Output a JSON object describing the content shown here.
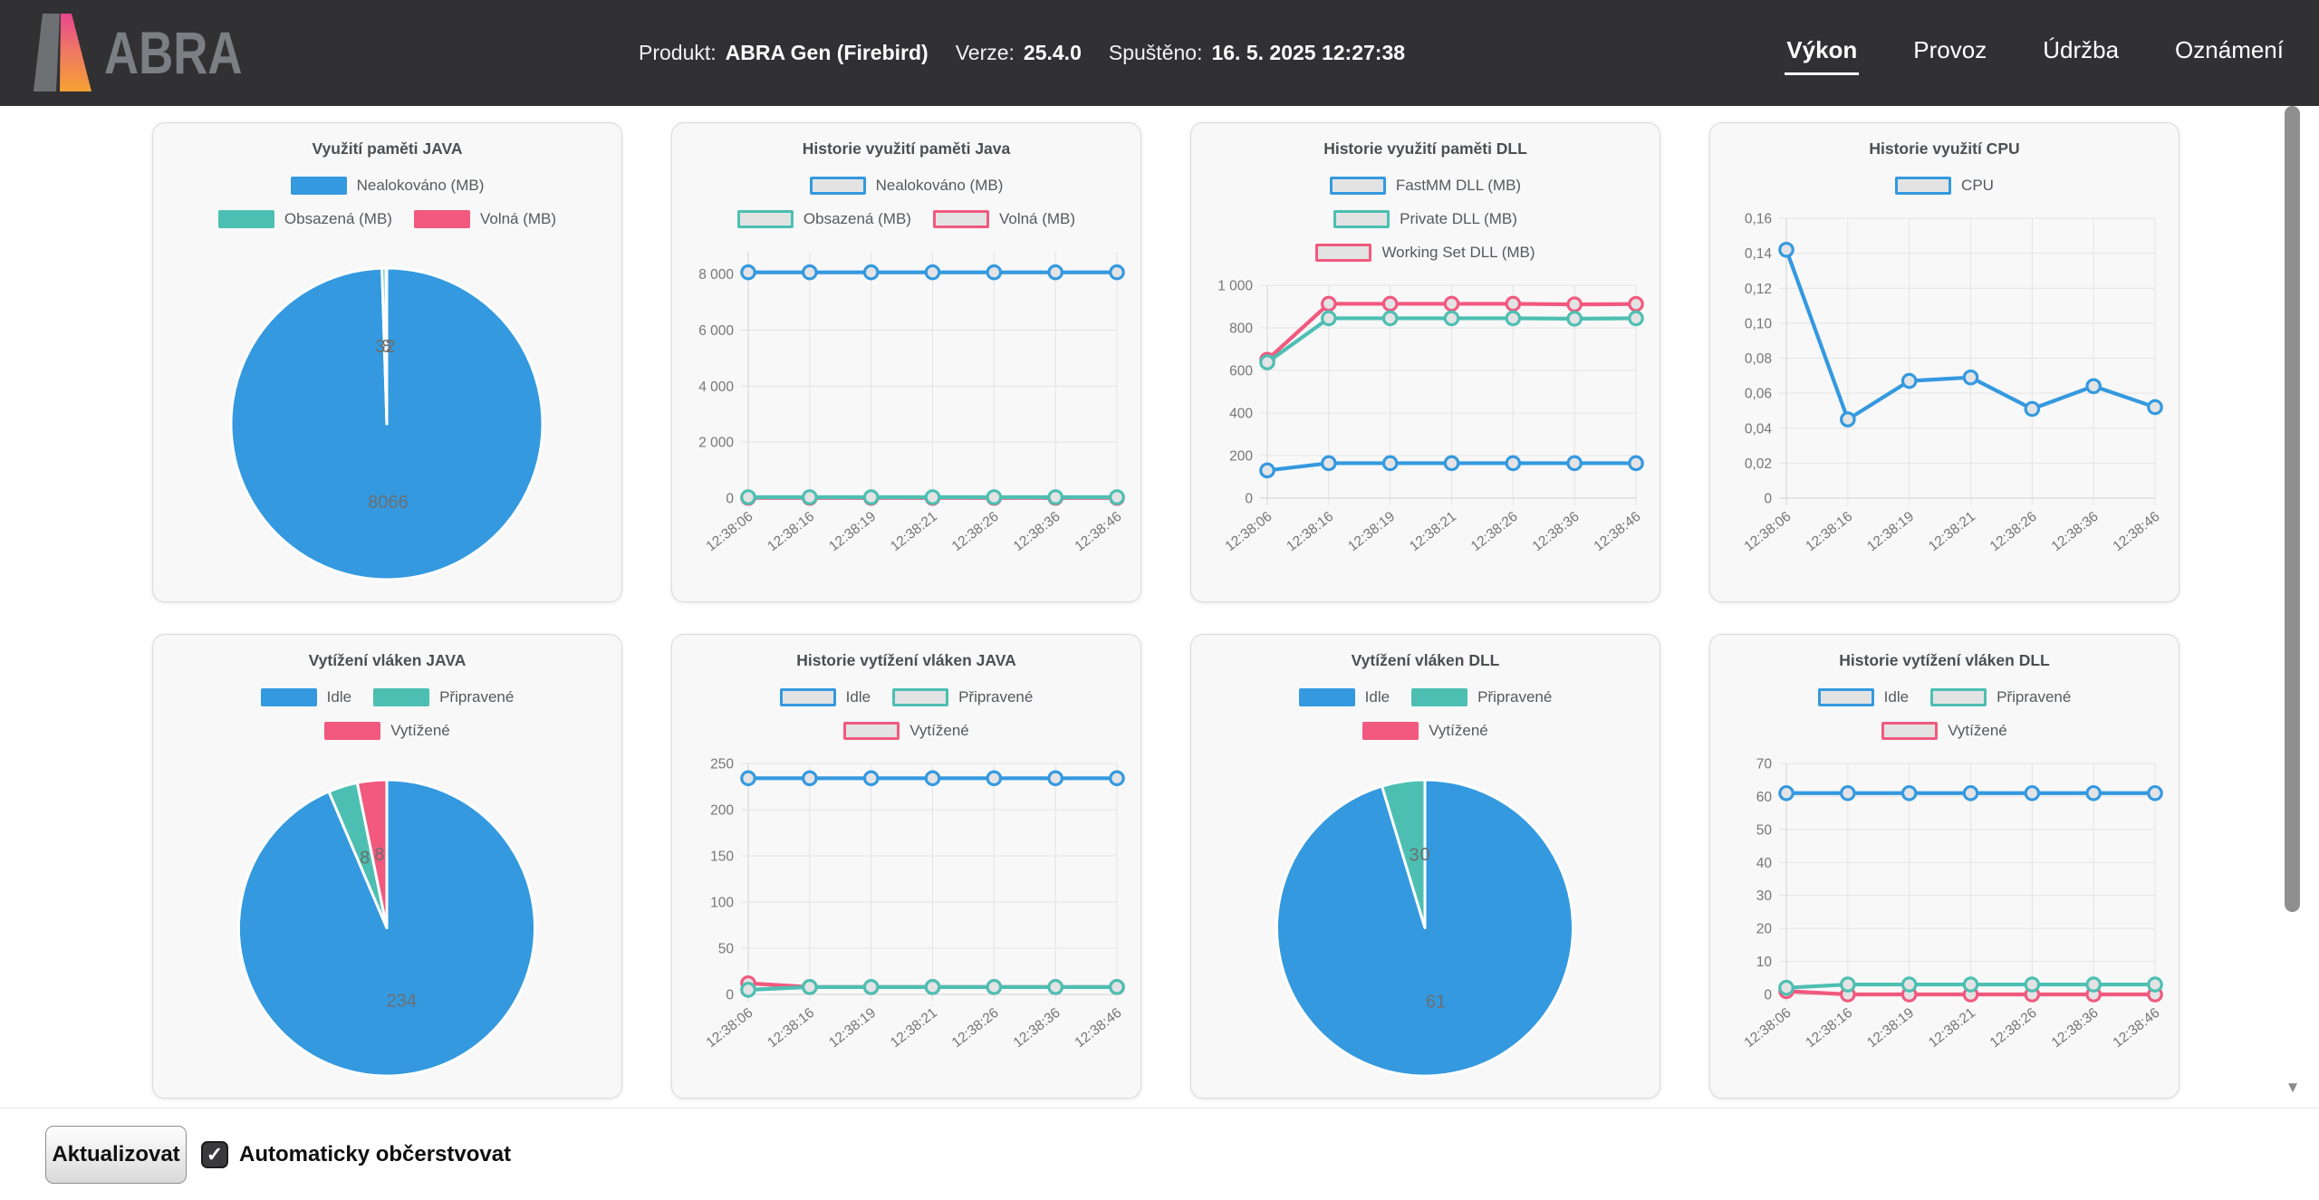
{
  "header": {
    "logo_text": "ABRA",
    "product": {
      "label": "Produkt:",
      "value": "ABRA Gen (Firebird)"
    },
    "version": {
      "label": "Verze:",
      "value": "25.4.0"
    },
    "started": {
      "label": "Spuštěno:",
      "value": "16. 5. 2025 12:27:38"
    },
    "tabs": [
      {
        "label": "Výkon",
        "active": true
      },
      {
        "label": "Provoz",
        "active": false
      },
      {
        "label": "Údržba",
        "active": false
      },
      {
        "label": "Oznámení",
        "active": false
      }
    ]
  },
  "footer": {
    "refresh_button_label": "Aktualizovat",
    "auto_refresh_label": "Automaticky občerstvovat",
    "auto_refresh_checked": true
  },
  "icons": {
    "checkmark": "✓",
    "scroll_down_arrow": "▼"
  },
  "colors": {
    "blue": "#3499DF",
    "teal": "#4DBFB2",
    "pink": "#F1597E",
    "legend_fill": "#E3E3E3",
    "header_bg": "#313133",
    "card_bg": "#F8F8F9",
    "grid": "#E3E3E3",
    "axis": "#D2D2D2",
    "tick_text": "#767676",
    "title_text": "#4B4F52",
    "pie_label_text": "#6B6F71"
  },
  "chart_data": [
    {
      "type": "pie",
      "title": "Využití paměti JAVA",
      "legend_style": "solid",
      "legend_rows": [
        [
          "Nealokováno (MB)"
        ],
        [
          "Obsazená (MB)",
          "Volná (MB)"
        ]
      ],
      "slices": [
        {
          "label": "Nealokováno (MB)",
          "value": 8066,
          "color": "blue"
        },
        {
          "label": "Obsazená (MB)",
          "value": 32,
          "color": "teal"
        },
        {
          "label": "Volná (MB)",
          "value": 8,
          "color": "pink"
        }
      ]
    },
    {
      "type": "line",
      "title": "Historie využití paměti Java",
      "legend_style": "outline",
      "legend_rows": [
        [
          "Nealokováno (MB)"
        ],
        [
          "Obsazená (MB)",
          "Volná (MB)"
        ]
      ],
      "x": [
        "12:38:06",
        "12:38:16",
        "12:38:19",
        "12:38:21",
        "12:38:26",
        "12:38:36",
        "12:38:46"
      ],
      "ymax": 8800,
      "y_ticks": [
        {
          "v": 0,
          "label": "0"
        },
        {
          "v": 2000,
          "label": "2 000"
        },
        {
          "v": 4000,
          "label": "4 000"
        },
        {
          "v": 6000,
          "label": "6 000"
        },
        {
          "v": 8000,
          "label": "8 000"
        }
      ],
      "series": [
        {
          "name": "Nealokováno (MB)",
          "color": "blue",
          "values": [
            8066,
            8066,
            8066,
            8066,
            8066,
            8066,
            8066
          ]
        },
        {
          "name": "Obsazená (MB)",
          "color": "teal",
          "values": [
            32,
            32,
            32,
            32,
            32,
            32,
            32
          ]
        },
        {
          "name": "Volná (MB)",
          "color": "pink",
          "values": [
            8,
            8,
            8,
            8,
            8,
            8,
            8
          ]
        }
      ]
    },
    {
      "type": "line",
      "title": "Historie využití paměti DLL",
      "legend_style": "outline",
      "legend_rows": [
        [
          "FastMM DLL (MB)"
        ],
        [
          "Private DLL (MB)"
        ],
        [
          "Working Set DLL (MB)"
        ]
      ],
      "x": [
        "12:38:06",
        "12:38:16",
        "12:38:19",
        "12:38:21",
        "12:38:26",
        "12:38:36",
        "12:38:46"
      ],
      "ymax": 1000,
      "y_ticks": [
        {
          "v": 0,
          "label": "0"
        },
        {
          "v": 200,
          "label": "200"
        },
        {
          "v": 400,
          "label": "400"
        },
        {
          "v": 600,
          "label": "600"
        },
        {
          "v": 800,
          "label": "800"
        },
        {
          "v": 1000,
          "label": "1 000"
        }
      ],
      "series": [
        {
          "name": "FastMM DLL (MB)",
          "color": "blue",
          "values": [
            130,
            164,
            164,
            164,
            164,
            164,
            164
          ]
        },
        {
          "name": "Private DLL (MB)",
          "color": "teal",
          "values": [
            638,
            845,
            845,
            845,
            845,
            843,
            845
          ]
        },
        {
          "name": "Working Set DLL (MB)",
          "color": "pink",
          "values": [
            650,
            913,
            913,
            913,
            913,
            910,
            912
          ]
        }
      ]
    },
    {
      "type": "line",
      "title": "Historie využití CPU",
      "legend_style": "outline",
      "legend_rows": [
        [
          "CPU"
        ]
      ],
      "x": [
        "12:38:06",
        "12:38:16",
        "12:38:19",
        "12:38:21",
        "12:38:26",
        "12:38:36",
        "12:38:46"
      ],
      "ymax": 0.16,
      "y_ticks": [
        {
          "v": 0,
          "label": "0"
        },
        {
          "v": 0.02,
          "label": "0,02"
        },
        {
          "v": 0.04,
          "label": "0,04"
        },
        {
          "v": 0.06,
          "label": "0,06"
        },
        {
          "v": 0.08,
          "label": "0,08"
        },
        {
          "v": 0.1,
          "label": "0,10"
        },
        {
          "v": 0.12,
          "label": "0,12"
        },
        {
          "v": 0.14,
          "label": "0,14"
        },
        {
          "v": 0.16,
          "label": "0,16"
        }
      ],
      "series": [
        {
          "name": "CPU",
          "color": "blue",
          "values": [
            0.142,
            0.045,
            0.067,
            0.069,
            0.051,
            0.064,
            0.052
          ]
        }
      ]
    },
    {
      "type": "pie",
      "title": "Vytížení vláken JAVA",
      "legend_style": "solid",
      "legend_rows": [
        [
          "Idle",
          "Připravené"
        ],
        [
          "Vytížené"
        ]
      ],
      "slices": [
        {
          "label": "Idle",
          "value": 234,
          "color": "blue"
        },
        {
          "label": "Připravené",
          "value": 8,
          "color": "teal"
        },
        {
          "label": "Vytížené",
          "value": 8,
          "color": "pink"
        }
      ]
    },
    {
      "type": "line",
      "title": "Historie vytížení vláken JAVA",
      "legend_style": "outline",
      "legend_rows": [
        [
          "Idle",
          "Připravené"
        ],
        [
          "Vytížené"
        ]
      ],
      "x": [
        "12:38:06",
        "12:38:16",
        "12:38:19",
        "12:38:21",
        "12:38:26",
        "12:38:36",
        "12:38:46"
      ],
      "ymax": 250,
      "y_ticks": [
        {
          "v": 0,
          "label": "0"
        },
        {
          "v": 50,
          "label": "50"
        },
        {
          "v": 100,
          "label": "100"
        },
        {
          "v": 150,
          "label": "150"
        },
        {
          "v": 200,
          "label": "200"
        },
        {
          "v": 250,
          "label": "250"
        }
      ],
      "series": [
        {
          "name": "Idle",
          "color": "blue",
          "values": [
            234,
            234,
            234,
            234,
            234,
            234,
            234
          ]
        },
        {
          "name": "Připravené",
          "color": "teal",
          "values": [
            5,
            8,
            8,
            8,
            8,
            8,
            8
          ]
        },
        {
          "name": "Vytížené",
          "color": "pink",
          "values": [
            12,
            8,
            8,
            8,
            8,
            8,
            8
          ]
        }
      ]
    },
    {
      "type": "pie",
      "title": "Vytížení vláken DLL",
      "legend_style": "solid",
      "legend_rows": [
        [
          "Idle",
          "Připravené"
        ],
        [
          "Vytížené"
        ]
      ],
      "slices": [
        {
          "label": "Idle",
          "value": 61,
          "color": "blue"
        },
        {
          "label": "Připravené",
          "value": 3,
          "color": "teal"
        },
        {
          "label": "Vytížené",
          "value": 0,
          "color": "pink"
        }
      ]
    },
    {
      "type": "line",
      "title": "Historie vytížení vláken DLL",
      "legend_style": "outline",
      "legend_rows": [
        [
          "Idle",
          "Připravené"
        ],
        [
          "Vytížené"
        ]
      ],
      "x": [
        "12:38:06",
        "12:38:16",
        "12:38:19",
        "12:38:21",
        "12:38:26",
        "12:38:36",
        "12:38:46"
      ],
      "ymax": 70,
      "y_ticks": [
        {
          "v": 0,
          "label": "0"
        },
        {
          "v": 10,
          "label": "10"
        },
        {
          "v": 20,
          "label": "20"
        },
        {
          "v": 30,
          "label": "30"
        },
        {
          "v": 40,
          "label": "40"
        },
        {
          "v": 50,
          "label": "50"
        },
        {
          "v": 60,
          "label": "60"
        },
        {
          "v": 70,
          "label": "70"
        }
      ],
      "series": [
        {
          "name": "Idle",
          "color": "blue",
          "values": [
            61,
            61,
            61,
            61,
            61,
            61,
            61
          ]
        },
        {
          "name": "Připravené",
          "color": "teal",
          "values": [
            2,
            3,
            3,
            3,
            3,
            3,
            3
          ]
        },
        {
          "name": "Vytížené",
          "color": "pink",
          "values": [
            1,
            0,
            0,
            0,
            0,
            0,
            0
          ]
        }
      ]
    }
  ]
}
